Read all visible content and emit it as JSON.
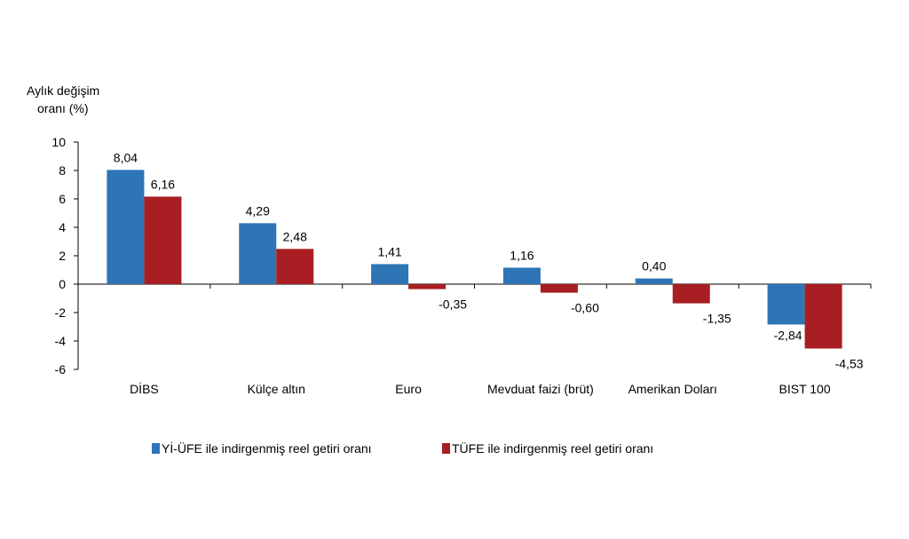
{
  "chart_data": {
    "type": "bar",
    "ylabel_lines": [
      "Aylık değişim",
      "oranı (%)"
    ],
    "categories": [
      "DİBS",
      "Külçe altın",
      "Euro",
      "Mevduat faizi (brüt)",
      "Amerikan Doları",
      "BIST 100"
    ],
    "series": [
      {
        "name": "Yİ-ÜFE ile indirgenmiş reel getiri oranı",
        "color": "#2E75B6",
        "values": [
          8.04,
          4.29,
          1.41,
          1.16,
          0.4,
          -2.84
        ],
        "labels": [
          "8,04",
          "4,29",
          "1,41",
          "1,16",
          "0,40",
          "-2,84"
        ]
      },
      {
        "name": "TÜFE ile indirgenmiş reel getiri oranı",
        "color": "#A91E22",
        "values": [
          6.16,
          2.48,
          -0.35,
          -0.6,
          -1.35,
          -4.53
        ],
        "labels": [
          "6,16",
          "2,48",
          "-0,35",
          "-0,60",
          "-1,35",
          "-4,53"
        ]
      }
    ],
    "ylim": [
      -6,
      10
    ],
    "yticks": [
      10,
      8,
      6,
      4,
      2,
      0,
      -2,
      -4,
      -6
    ],
    "grid": false,
    "legend_position": "bottom"
  }
}
